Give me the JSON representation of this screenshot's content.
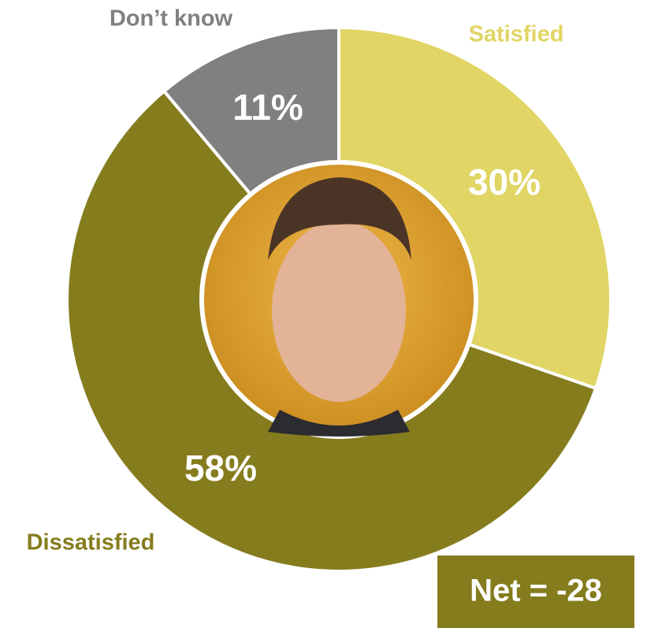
{
  "chart_data": {
    "type": "donut",
    "categories": [
      "Satisfied",
      "Dissatisfied",
      "Don’t know"
    ],
    "values": [
      30,
      58,
      11
    ],
    "value_labels": [
      "30%",
      "58%",
      "11%"
    ],
    "colors": [
      "#e0d565",
      "#857c1e",
      "#808080"
    ],
    "annotation": "Net = -28"
  }
}
